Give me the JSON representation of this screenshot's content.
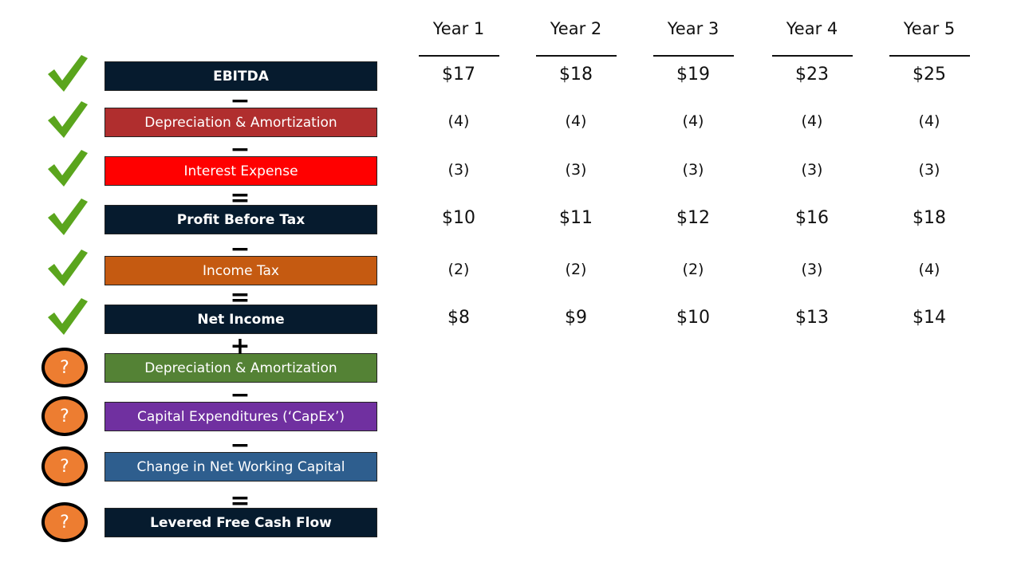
{
  "columns": [
    "Year 1",
    "Year 2",
    "Year 3",
    "Year 4",
    "Year 5"
  ],
  "rows": [
    {
      "label": "EBITDA",
      "color": "#061b2e",
      "values": [
        "$17",
        "$18",
        "$19",
        "$23",
        "$25"
      ]
    },
    {
      "operator": "−",
      "label": "Depreciation & Amortization",
      "color": "#b02e2e",
      "values": [
        "(4)",
        "(4)",
        "(4)",
        "(4)",
        "(4)"
      ]
    },
    {
      "operator": "−",
      "label": "Interest Expense",
      "color": "#ff0000",
      "values": [
        "(3)",
        "(3)",
        "(3)",
        "(3)",
        "(3)"
      ]
    },
    {
      "operator": "=",
      "label": "Profit Before Tax",
      "color": "#061b2e",
      "values": [
        "$10",
        "$11",
        "$12",
        "$16",
        "$18"
      ]
    },
    {
      "operator": "−",
      "label": "Income Tax",
      "color": "#c55a11",
      "values": [
        "(2)",
        "(2)",
        "(2)",
        "(3)",
        "(4)"
      ]
    },
    {
      "operator": "=",
      "label": "Net Income",
      "color": "#061b2e",
      "values": [
        "$8",
        "$9",
        "$10",
        "$13",
        "$14"
      ]
    },
    {
      "operator": "+",
      "label": "Depreciation & Amortization",
      "color": "#548235",
      "icon": "?"
    },
    {
      "operator": "−",
      "label": "Capital Expenditures (‘CapEx’)",
      "color": "#7030a0",
      "icon": "?"
    },
    {
      "operator": "−",
      "label": "Change in Net Working Capital",
      "color": "#2e5e8e",
      "icon": "?"
    },
    {
      "operator": "=",
      "label": "Levered Free Cash Flow",
      "color": "#061b2e",
      "icon": "?"
    }
  ]
}
